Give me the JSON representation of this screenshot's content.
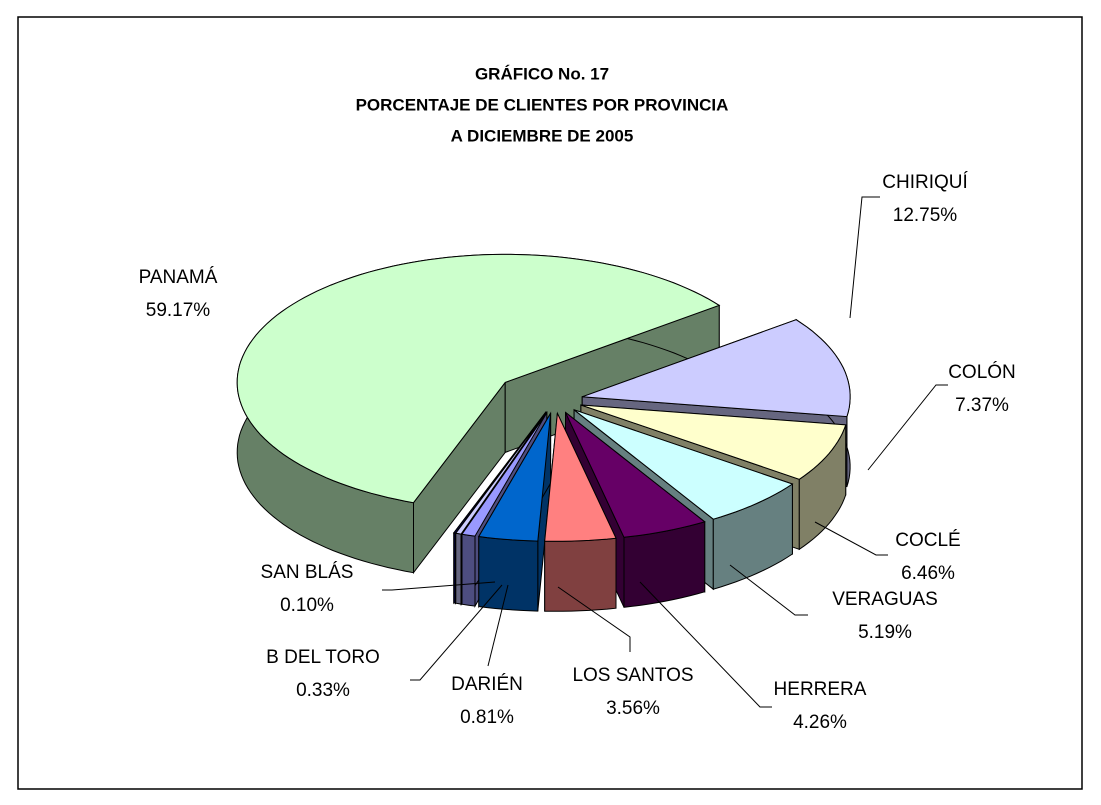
{
  "chart_data": {
    "type": "pie",
    "title": [
      "GRÁFICO  No.  17",
      "PORCENTAJE  DE CLIENTES POR PROVINCIA",
      "A DICIEMBRE DE 2005"
    ],
    "categories": [
      "PANAMÁ",
      "CHIRIQUÍ",
      "COLÓN",
      "COCLÉ",
      "VERAGUAS",
      "HERRERA",
      "LOS SANTOS",
      "DARIÉN",
      "B DEL TORO",
      "SAN BLÁS"
    ],
    "values": [
      59.17,
      12.75,
      7.37,
      6.46,
      5.19,
      4.26,
      3.56,
      0.81,
      0.33,
      0.1
    ],
    "value_labels": [
      "59.17%",
      "12.75%",
      "7.37%",
      "6.46%",
      "5.19%",
      "4.26%",
      "3.56%",
      "0.81%",
      "0.33%",
      "0.10%"
    ],
    "colors": [
      "#ccffcc",
      "#ccccff",
      "#ffffcc",
      "#ccffff",
      "#660066",
      "#ff8080",
      "#0066cc",
      "#9999ff",
      "#ccccff",
      "#000080"
    ]
  }
}
